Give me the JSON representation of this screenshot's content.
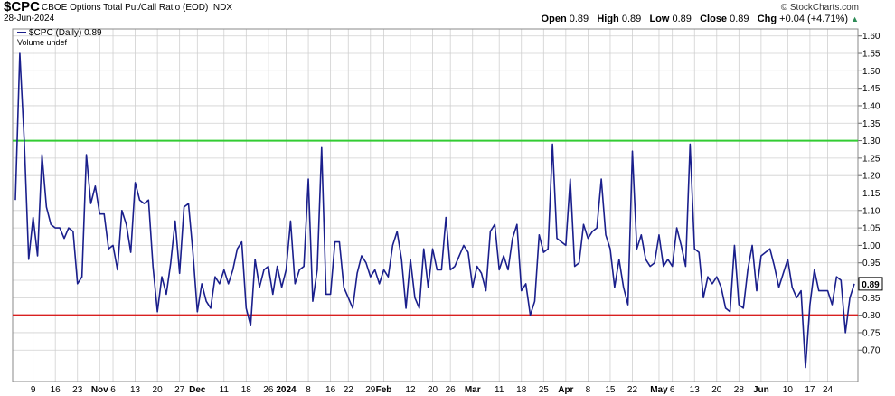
{
  "header": {
    "symbol": "$CPC",
    "name": "CBOE Options Total Put/Call Ratio (EOD)",
    "exchange": "INDX",
    "date": "28-Jun-2024",
    "brand": "© StockCharts.com",
    "ohlc": {
      "open_label": "Open",
      "open": "0.89",
      "high_label": "High",
      "high": "0.89",
      "low_label": "Low",
      "low": "0.89",
      "close_label": "Close",
      "close": "0.89",
      "chg_label": "Chg",
      "chg": "+0.04 (+4.71%)"
    }
  },
  "legend": {
    "series_label": "$CPC (Daily) 0.89",
    "volume_label": "Volume undef"
  },
  "last_value_tag": "0.89",
  "colors": {
    "series": "#1a1f8c",
    "upper_line": "#33cc33",
    "lower_line": "#d92020",
    "grid": "#d0d0d0",
    "chg_arrow": "#2e8b57"
  },
  "chart_data": {
    "type": "line",
    "title": "$CPC CBOE Options Total Put/Call Ratio (EOD)",
    "ylim": [
      0.61,
      1.62
    ],
    "y_ticks": [
      1.6,
      1.55,
      1.5,
      1.45,
      1.4,
      1.35,
      1.3,
      1.25,
      1.2,
      1.15,
      1.1,
      1.05,
      1.0,
      0.95,
      0.9,
      0.85,
      0.8,
      0.75,
      0.7
    ],
    "y_tick_labels": [
      "1.60",
      "1.55",
      "1.50",
      "1.45",
      "1.40",
      "1.35",
      "1.30",
      "1.25",
      "1.20",
      "1.15",
      "1.10",
      "1.05",
      "1.00",
      "0.95",
      "0.90",
      "0.85",
      "0.80",
      "0.75",
      "0.70"
    ],
    "x_labels": [
      {
        "text": "9",
        "i": 4,
        "bold": false
      },
      {
        "text": "16",
        "i": 9,
        "bold": false
      },
      {
        "text": "23",
        "i": 14,
        "bold": false
      },
      {
        "text": "Nov",
        "i": 19,
        "bold": true
      },
      {
        "text": "6",
        "i": 22,
        "bold": false
      },
      {
        "text": "13",
        "i": 27,
        "bold": false
      },
      {
        "text": "20",
        "i": 32,
        "bold": false
      },
      {
        "text": "27",
        "i": 37,
        "bold": false
      },
      {
        "text": "Dec",
        "i": 41,
        "bold": true
      },
      {
        "text": "11",
        "i": 47,
        "bold": false
      },
      {
        "text": "18",
        "i": 52,
        "bold": false
      },
      {
        "text": "26",
        "i": 57,
        "bold": false
      },
      {
        "text": "2024",
        "i": 61,
        "bold": true
      },
      {
        "text": "8",
        "i": 66,
        "bold": false
      },
      {
        "text": "16",
        "i": 71,
        "bold": false
      },
      {
        "text": "22",
        "i": 75,
        "bold": false
      },
      {
        "text": "29",
        "i": 80,
        "bold": false
      },
      {
        "text": "Feb",
        "i": 83,
        "bold": true
      },
      {
        "text": "12",
        "i": 89,
        "bold": false
      },
      {
        "text": "20",
        "i": 94,
        "bold": false
      },
      {
        "text": "26",
        "i": 98,
        "bold": false
      },
      {
        "text": "Mar",
        "i": 103,
        "bold": true
      },
      {
        "text": "11",
        "i": 109,
        "bold": false
      },
      {
        "text": "18",
        "i": 114,
        "bold": false
      },
      {
        "text": "25",
        "i": 119,
        "bold": false
      },
      {
        "text": "Apr",
        "i": 124,
        "bold": true
      },
      {
        "text": "8",
        "i": 129,
        "bold": false
      },
      {
        "text": "15",
        "i": 134,
        "bold": false
      },
      {
        "text": "22",
        "i": 139,
        "bold": false
      },
      {
        "text": "May",
        "i": 145,
        "bold": true
      },
      {
        "text": "6",
        "i": 148,
        "bold": false
      },
      {
        "text": "13",
        "i": 153,
        "bold": false
      },
      {
        "text": "20",
        "i": 158,
        "bold": false
      },
      {
        "text": "28",
        "i": 163,
        "bold": false
      },
      {
        "text": "Jun",
        "i": 168,
        "bold": true
      },
      {
        "text": "10",
        "i": 174,
        "bold": false
      },
      {
        "text": "17",
        "i": 179,
        "bold": false
      },
      {
        "text": "24",
        "i": 183,
        "bold": false
      }
    ],
    "series": [
      {
        "name": "$CPC (Daily)",
        "values": [
          1.13,
          1.55,
          1.3,
          0.96,
          1.08,
          0.97,
          1.26,
          1.11,
          1.06,
          1.05,
          1.05,
          1.02,
          1.05,
          1.04,
          0.89,
          0.91,
          1.26,
          1.12,
          1.17,
          1.09,
          1.09,
          0.99,
          1.0,
          0.93,
          1.1,
          1.06,
          0.98,
          1.18,
          1.13,
          1.12,
          1.13,
          0.94,
          0.81,
          0.91,
          0.86,
          0.95,
          1.07,
          0.92,
          1.11,
          1.12,
          0.98,
          0.81,
          0.89,
          0.84,
          0.82,
          0.91,
          0.89,
          0.93,
          0.89,
          0.93,
          0.99,
          1.01,
          0.82,
          0.77,
          0.96,
          0.88,
          0.93,
          0.94,
          0.86,
          0.94,
          0.88,
          0.93,
          1.07,
          0.89,
          0.93,
          0.94,
          1.19,
          0.84,
          0.93,
          1.28,
          0.86,
          0.86,
          1.01,
          1.01,
          0.88,
          0.85,
          0.82,
          0.92,
          0.97,
          0.95,
          0.91,
          0.93,
          0.89,
          0.93,
          0.91,
          1.0,
          1.04,
          0.96,
          0.82,
          0.96,
          0.85,
          0.82,
          0.99,
          0.88,
          0.99,
          0.93,
          0.93,
          1.08,
          0.93,
          0.94,
          0.97,
          1.0,
          0.98,
          0.88,
          0.94,
          0.92,
          0.87,
          1.04,
          1.06,
          0.93,
          0.97,
          0.93,
          1.02,
          1.06,
          0.87,
          0.89,
          0.8,
          0.84,
          1.03,
          0.98,
          0.99,
          1.29,
          1.02,
          1.01,
          1.0,
          1.19,
          0.94,
          0.95,
          1.06,
          1.02,
          1.04,
          1.05,
          1.19,
          1.03,
          0.99,
          0.88,
          0.96,
          0.88,
          0.83,
          1.27,
          0.99,
          1.03,
          0.96,
          0.94,
          0.95,
          1.03,
          0.94,
          0.96,
          0.94,
          1.05,
          1.0,
          0.94,
          1.29,
          0.99,
          0.98,
          0.85,
          0.91,
          0.89,
          0.91,
          0.88,
          0.82,
          0.81,
          1.0,
          0.83,
          0.82,
          0.93,
          1.0,
          0.87,
          0.97,
          0.98,
          0.99,
          0.94,
          0.88,
          0.92,
          0.96,
          0.88,
          0.85,
          0.87,
          0.65,
          0.83,
          0.93,
          0.87,
          0.87,
          0.87,
          0.83,
          0.91,
          0.9,
          0.75,
          0.85,
          0.89
        ]
      }
    ],
    "reference_lines": [
      {
        "y": 1.3,
        "color": "#33cc33"
      },
      {
        "y": 0.8,
        "color": "#d92020"
      }
    ],
    "grid": true,
    "legend_position": "top-left"
  }
}
